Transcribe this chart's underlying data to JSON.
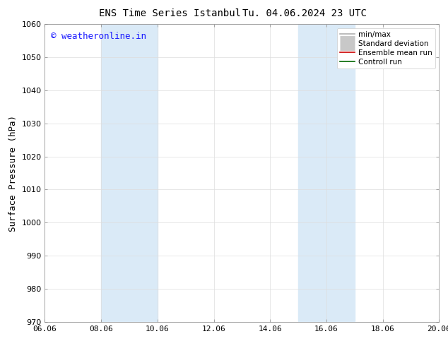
{
  "title_left": "ENS Time Series Istanbul",
  "title_right": "Tu. 04.06.2024 23 UTC",
  "ylabel": "Surface Pressure (hPa)",
  "ylim": [
    970,
    1060
  ],
  "yticks": [
    970,
    980,
    990,
    1000,
    1010,
    1020,
    1030,
    1040,
    1050,
    1060
  ],
  "xtick_labels": [
    "06.06",
    "08.06",
    "10.06",
    "12.06",
    "14.06",
    "16.06",
    "18.06",
    "20.06"
  ],
  "xtick_positions": [
    0,
    2,
    4,
    6,
    8,
    10,
    12,
    14
  ],
  "xlim": [
    0,
    14
  ],
  "shaded_bands": [
    {
      "x_start": 2,
      "x_end": 4,
      "color": "#daeaf7"
    },
    {
      "x_start": 9,
      "x_end": 11,
      "color": "#daeaf7"
    }
  ],
  "watermark_text": "© weatheronline.in",
  "watermark_color": "#1a1aff",
  "legend_items": [
    {
      "label": "min/max",
      "color": "#b0b0b0",
      "lw": 1.2,
      "style": "-"
    },
    {
      "label": "Standard deviation",
      "color": "#c8c8c8",
      "lw": 5,
      "style": "-"
    },
    {
      "label": "Ensemble mean run",
      "color": "#cc0000",
      "lw": 1.2,
      "style": "-"
    },
    {
      "label": "Controll run",
      "color": "#006600",
      "lw": 1.2,
      "style": "-"
    }
  ],
  "bg_color": "#ffffff",
  "grid_color": "#dddddd",
  "title_fontsize": 10,
  "axis_label_fontsize": 9,
  "tick_fontsize": 8,
  "watermark_fontsize": 9,
  "legend_fontsize": 7.5
}
